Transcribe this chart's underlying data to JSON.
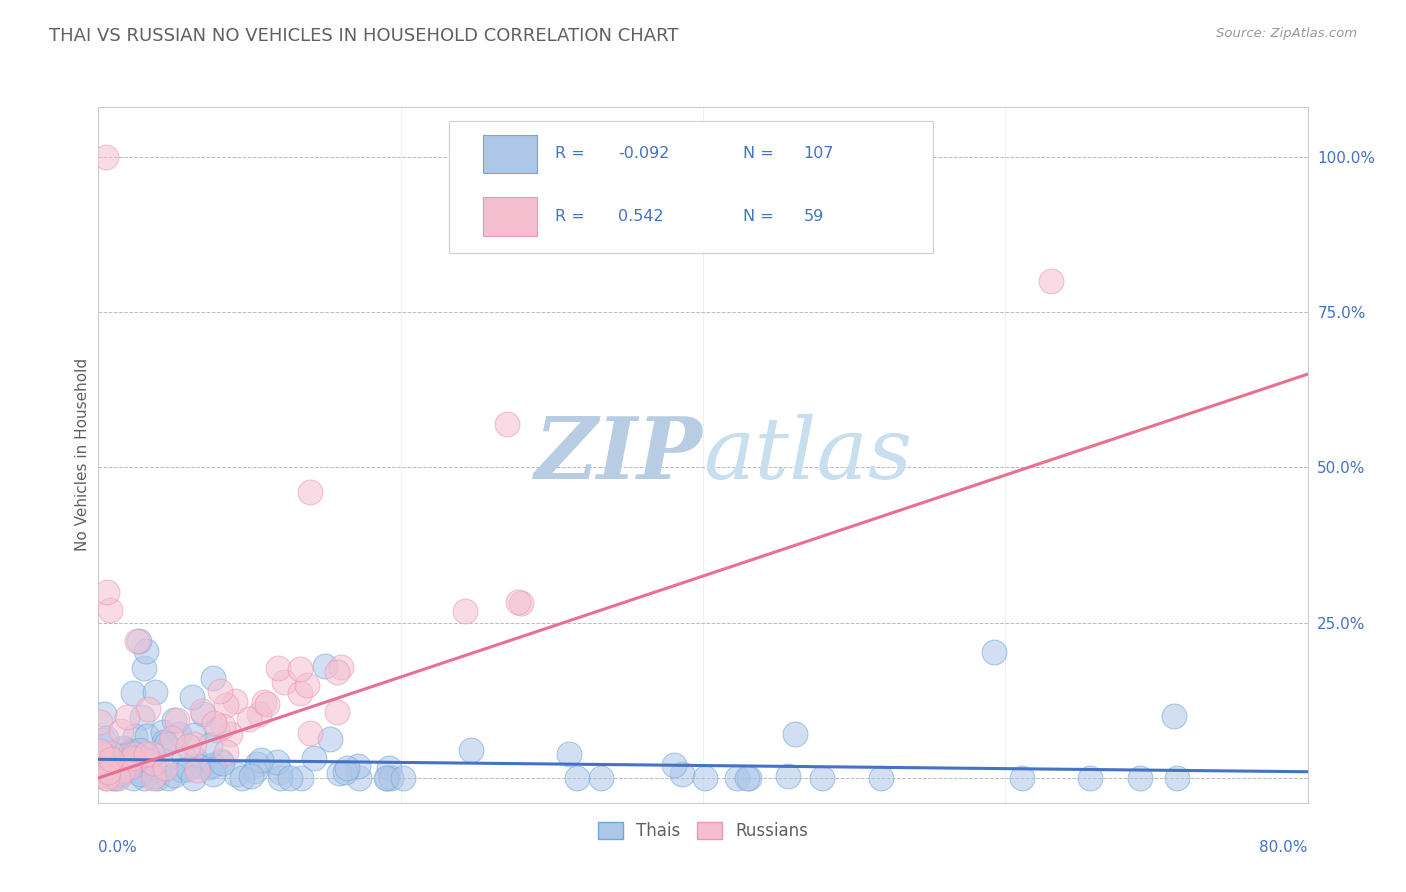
{
  "title": "THAI VS RUSSIAN NO VEHICLES IN HOUSEHOLD CORRELATION CHART",
  "source": "Source: ZipAtlas.com",
  "ylabel": "No Vehicles in Household",
  "xmin": 0.0,
  "xmax": 0.8,
  "ymin": -0.04,
  "ymax": 1.08,
  "thai_R": -0.092,
  "thai_N": 107,
  "russian_R": 0.542,
  "russian_N": 59,
  "thai_color": "#aec6e8",
  "thai_edge_color": "#6fa8d8",
  "russian_color": "#f5bfd0",
  "russian_edge_color": "#e898b8",
  "thai_line_color": "#4472c4",
  "russian_line_color": "#e87090",
  "watermark_color": "#d0dff0",
  "grid_color": "#bbbbbb",
  "title_color": "#606060",
  "legend_text_color": "#4472c4",
  "axis_label_color": "#4472c4",
  "background_color": "#ffffff",
  "legend_box_color": "#f0f4f8",
  "legend_border_color": "#c0c8d8"
}
